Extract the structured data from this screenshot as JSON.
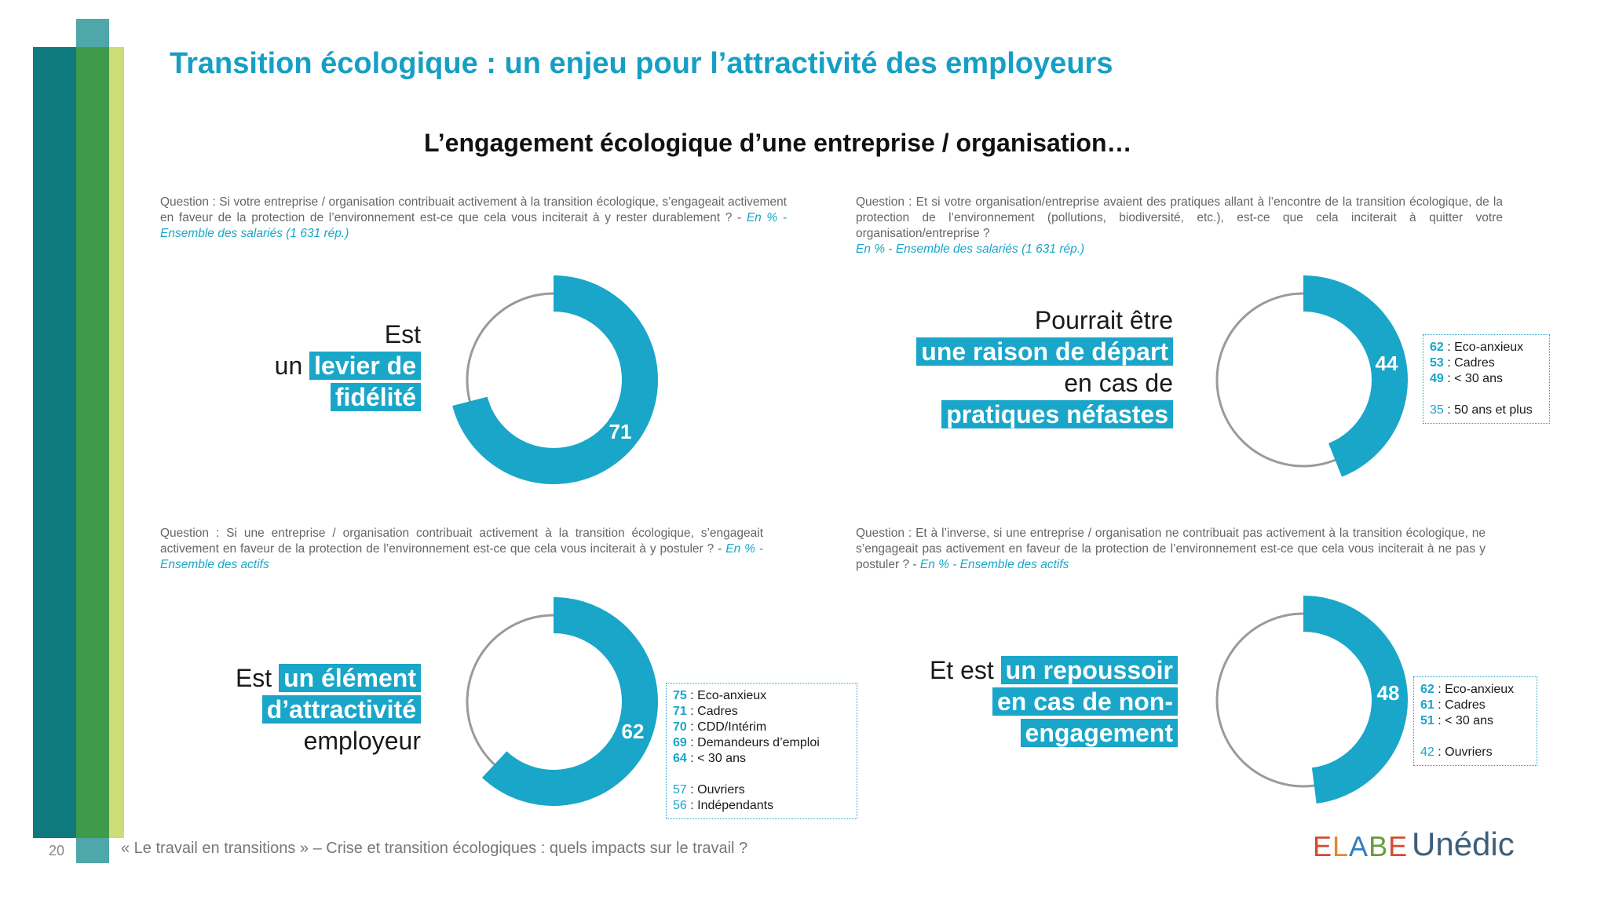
{
  "page": {
    "title": "Transition écologique : un enjeu pour l’attractivité des employeurs",
    "subtitle": "L’engagement écologique d’une entreprise / organisation…",
    "page_number": "20",
    "footer": "« Le travail en transitions » – Crise et transition écologiques : quels impacts sur le travail ?",
    "logo_elabe_letters": [
      "E",
      "L",
      "A",
      "B",
      "E"
    ],
    "logo_unedic": "Unédic"
  },
  "colors": {
    "accent": "#19a6c9",
    "title": "#169fc4",
    "remainder_ring": "#9a9a9a",
    "bar_teal": "#0e7a7e",
    "bar_green": "#3f9b4b",
    "bar_lime": "#cddc76",
    "logo_elabe": [
      "#d64a2f",
      "#e08a2c",
      "#2f7fc1",
      "#6a9a3c",
      "#d64a2f"
    ]
  },
  "questions": [
    {
      "text": "Question : Si votre entreprise / organisation contribuait activement à la transition écologique, s’engageait activement en faveur de la protection de l’environnement est-ce que cela vous inciterait à y rester durablement ? - ",
      "source": "En % - Ensemble des salariés (1 631 rép.)"
    },
    {
      "text": "Question : Et si votre organisation/entreprise avaient des pratiques allant à l’encontre de la transition écologique, de la protection de l’environnement (pollutions, biodiversité, etc.), est-ce que cela inciterait à quitter votre organisation/entreprise ?",
      "source": "En % - Ensemble des salariés (1 631 rép.)"
    },
    {
      "text": "Question : Si une entreprise / organisation contribuait activement à la transition écologique, s’engageait activement en faveur de la protection de l’environnement est-ce que cela vous inciterait à y postuler ? - ",
      "source": "En % - Ensemble des actifs"
    },
    {
      "text": "Question : Et à l’inverse, si une entreprise / organisation ne contribuait pas activement à la transition écologique, ne s’engageait pas activement en faveur de la protection de l’environnement est-ce que cela vous inciterait à ne pas y postuler ? - ",
      "source": "En % - Ensemble des actifs"
    }
  ],
  "statements": [
    {
      "lines": [
        {
          "plain": "Est",
          "highlight": ""
        },
        {
          "plain": "un ",
          "highlight": "levier de"
        },
        {
          "plain": "",
          "highlight": "fidélité"
        }
      ]
    },
    {
      "lines": [
        {
          "plain": "Pourrait être",
          "highlight": ""
        },
        {
          "plain": "",
          "highlight": "une raison de départ"
        },
        {
          "plain": "en cas de",
          "highlight": ""
        },
        {
          "plain": "",
          "highlight": "pratiques néfastes"
        }
      ]
    },
    {
      "lines": [
        {
          "plain": "Est ",
          "highlight": "un élément"
        },
        {
          "plain": "",
          "highlight": "d’attractivité"
        },
        {
          "plain": "employeur",
          "highlight": ""
        }
      ]
    },
    {
      "lines": [
        {
          "plain": "Et est ",
          "highlight": "un repoussoir"
        },
        {
          "plain": "",
          "highlight": "en cas de non-"
        },
        {
          "plain": "",
          "highlight": "engagement"
        }
      ]
    }
  ],
  "chart_data": [
    {
      "type": "pie",
      "donut": true,
      "value": 71,
      "max": 100,
      "label": "71"
    },
    {
      "type": "pie",
      "donut": true,
      "value": 44,
      "max": 100,
      "label": "44",
      "breakdown": [
        {
          "value": "62",
          "label": ": Eco-anxieux",
          "style": "bold"
        },
        {
          "value": "53",
          "label": ": Cadres",
          "style": "bold"
        },
        {
          "value": "49",
          "label": ": < 30 ans",
          "style": "bold"
        },
        {
          "value": "35",
          "label": ": 50 ans et plus",
          "style": "light"
        }
      ]
    },
    {
      "type": "pie",
      "donut": true,
      "value": 62,
      "max": 100,
      "label": "62",
      "breakdown": [
        {
          "value": "75",
          "label": ": Eco-anxieux",
          "style": "bold"
        },
        {
          "value": "71",
          "label": ": Cadres",
          "style": "bold"
        },
        {
          "value": "70",
          "label": ": CDD/Intérim",
          "style": "bold"
        },
        {
          "value": "69",
          "label": ": Demandeurs d’emploi",
          "style": "bold"
        },
        {
          "value": "64",
          "label": ": < 30 ans",
          "style": "bold"
        },
        {
          "value": "57",
          "label": ": Ouvriers",
          "style": "light"
        },
        {
          "value": "56",
          "label": ": Indépendants",
          "style": "light"
        }
      ]
    },
    {
      "type": "pie",
      "donut": true,
      "value": 48,
      "max": 100,
      "label": "48",
      "breakdown": [
        {
          "value": "62",
          "label": ": Eco-anxieux",
          "style": "bold"
        },
        {
          "value": "61",
          "label": ": Cadres",
          "style": "bold"
        },
        {
          "value": "51",
          "label": ": < 30 ans",
          "style": "bold"
        },
        {
          "value": "42",
          "label": ": Ouvriers",
          "style": "light"
        }
      ]
    }
  ]
}
